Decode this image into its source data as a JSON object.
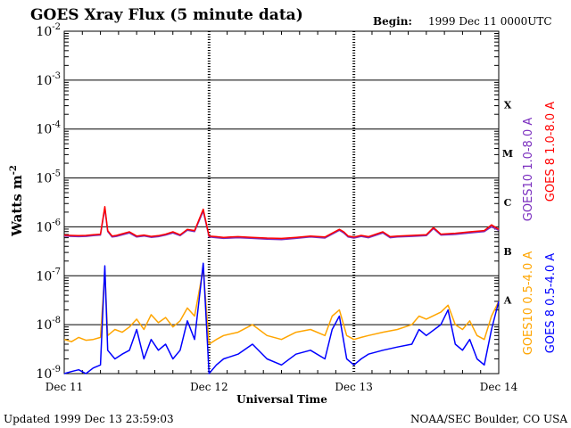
{
  "chart_data": {
    "type": "line",
    "title": "GOES Xray Flux (5 minute data)",
    "begin_label": "Begin:",
    "begin_value": "1999 Dec 11 0000UTC",
    "ylabel": "Watts m",
    "ylabel_sup": "-2",
    "xlabel": "Universal Time",
    "footer_left": "Updated 1999 Dec 13 23:59:03",
    "footer_right": "NOAA/SEC Boulder, CO USA",
    "y_scale": "log",
    "ylim": [
      1e-09,
      0.01
    ],
    "y_ticks": [
      {
        "base": "10",
        "exp": "-2"
      },
      {
        "base": "10",
        "exp": "-3"
      },
      {
        "base": "10",
        "exp": "-4"
      },
      {
        "base": "10",
        "exp": "-5"
      },
      {
        "base": "10",
        "exp": "-6"
      },
      {
        "base": "10",
        "exp": "-7"
      },
      {
        "base": "10",
        "exp": "-8"
      },
      {
        "base": "10",
        "exp": "-9"
      }
    ],
    "x_ticks": [
      "Dec 11",
      "Dec 12",
      "Dec 13",
      "Dec 14"
    ],
    "xlim_days": [
      0,
      3
    ],
    "flare_classes": [
      "X",
      "M",
      "C",
      "B",
      "A"
    ],
    "grid": true,
    "legend_position": "right (rotated)",
    "series": [
      {
        "name": "GOES10 1.0-8.0 A",
        "color": "#7b2fbf",
        "t": [
          0,
          0.05,
          0.1,
          0.15,
          0.2,
          0.25,
          0.28,
          0.3,
          0.33,
          0.36,
          0.45,
          0.5,
          0.55,
          0.6,
          0.65,
          0.7,
          0.75,
          0.8,
          0.85,
          0.9,
          0.96,
          1.0,
          1.05,
          1.1,
          1.15,
          1.2,
          1.3,
          1.4,
          1.5,
          1.6,
          1.7,
          1.8,
          1.9,
          1.93,
          1.96,
          2.0,
          2.05,
          2.1,
          2.2,
          2.25,
          2.3,
          2.4,
          2.5,
          2.55,
          2.6,
          2.7,
          2.8,
          2.9,
          2.95,
          3.0
        ],
        "v": [
          6.5e-07,
          6.4e-07,
          6.3e-07,
          6.4e-07,
          6.6e-07,
          6.8e-07,
          2.4e-06,
          8e-07,
          6.2e-07,
          6.4e-07,
          7.5e-07,
          6.2e-07,
          6.5e-07,
          6.1e-07,
          6.3e-07,
          6.8e-07,
          7.5e-07,
          6.6e-07,
          8.5e-07,
          8e-07,
          2.1e-06,
          6.2e-07,
          6e-07,
          5.8e-07,
          5.9e-07,
          6e-07,
          5.8e-07,
          5.6e-07,
          5.5e-07,
          5.8e-07,
          6.2e-07,
          5.9e-07,
          8.5e-07,
          7.5e-07,
          6.2e-07,
          5.9e-07,
          6.4e-07,
          6e-07,
          7.5e-07,
          6e-07,
          6.2e-07,
          6.4e-07,
          6.6e-07,
          9.2e-07,
          6.8e-07,
          7e-07,
          7.5e-07,
          8e-07,
          1e-06,
          8.5e-07
        ]
      },
      {
        "name": "GOES 8 1.0-8.0 A",
        "color": "#ff0000",
        "t": [
          0,
          0.05,
          0.1,
          0.15,
          0.2,
          0.25,
          0.28,
          0.3,
          0.33,
          0.36,
          0.45,
          0.5,
          0.55,
          0.6,
          0.65,
          0.7,
          0.75,
          0.8,
          0.85,
          0.9,
          0.96,
          1.0,
          1.05,
          1.1,
          1.15,
          1.2,
          1.3,
          1.4,
          1.5,
          1.6,
          1.7,
          1.8,
          1.9,
          1.93,
          1.96,
          2.0,
          2.05,
          2.1,
          2.2,
          2.25,
          2.3,
          2.4,
          2.5,
          2.55,
          2.6,
          2.7,
          2.8,
          2.9,
          2.95,
          3.0
        ],
        "v": [
          6.8e-07,
          6.7e-07,
          6.6e-07,
          6.7e-07,
          6.9e-07,
          7.1e-07,
          2.6e-06,
          8.4e-07,
          6.5e-07,
          6.7e-07,
          7.9e-07,
          6.5e-07,
          6.8e-07,
          6.4e-07,
          6.6e-07,
          7.1e-07,
          7.9e-07,
          6.9e-07,
          8.9e-07,
          8.4e-07,
          2.3e-06,
          6.5e-07,
          6.3e-07,
          6.1e-07,
          6.2e-07,
          6.3e-07,
          6.1e-07,
          5.9e-07,
          5.8e-07,
          6.1e-07,
          6.5e-07,
          6.2e-07,
          8.9e-07,
          7.9e-07,
          6.5e-07,
          6.2e-07,
          6.7e-07,
          6.3e-07,
          7.9e-07,
          6.3e-07,
          6.5e-07,
          6.7e-07,
          6.9e-07,
          9.7e-07,
          7.1e-07,
          7.4e-07,
          7.9e-07,
          8.4e-07,
          1.1e-06,
          8.9e-07
        ]
      },
      {
        "name": "GOES10 0.5-4.0 A",
        "color": "#ffa500",
        "t": [
          0,
          0.05,
          0.1,
          0.15,
          0.2,
          0.25,
          0.28,
          0.3,
          0.35,
          0.4,
          0.45,
          0.5,
          0.55,
          0.6,
          0.65,
          0.7,
          0.75,
          0.8,
          0.85,
          0.9,
          0.96,
          1.0,
          1.05,
          1.1,
          1.2,
          1.3,
          1.4,
          1.5,
          1.6,
          1.7,
          1.8,
          1.85,
          1.9,
          1.95,
          2.0,
          2.05,
          2.1,
          2.2,
          2.3,
          2.4,
          2.45,
          2.5,
          2.6,
          2.65,
          2.7,
          2.75,
          2.8,
          2.85,
          2.9,
          2.95,
          3.0
        ],
        "v": [
          5e-09,
          4.5e-09,
          5.5e-09,
          4.8e-09,
          5e-09,
          5.5e-09,
          1.2e-07,
          6e-09,
          8e-09,
          7e-09,
          9e-09,
          1.3e-08,
          8e-09,
          1.6e-08,
          1.1e-08,
          1.4e-08,
          9e-09,
          1.2e-08,
          2.2e-08,
          1.5e-08,
          1.4e-07,
          4e-09,
          5e-09,
          6e-09,
          7e-09,
          1e-08,
          6e-09,
          5e-09,
          7e-09,
          8e-09,
          6e-09,
          1.5e-08,
          2e-08,
          6e-09,
          5e-09,
          5.5e-09,
          6e-09,
          7e-09,
          8e-09,
          1e-08,
          1.5e-08,
          1.3e-08,
          1.8e-08,
          2.5e-08,
          1e-08,
          8e-09,
          1.2e-08,
          6e-09,
          5e-09,
          1.5e-08,
          3e-08
        ]
      },
      {
        "name": "GOES 8 0.5-4.0 A",
        "color": "#0000ff",
        "t": [
          0,
          0.05,
          0.1,
          0.15,
          0.2,
          0.25,
          0.28,
          0.3,
          0.35,
          0.4,
          0.45,
          0.5,
          0.55,
          0.6,
          0.65,
          0.7,
          0.75,
          0.8,
          0.85,
          0.9,
          0.96,
          1.0,
          1.05,
          1.1,
          1.2,
          1.3,
          1.4,
          1.5,
          1.6,
          1.7,
          1.8,
          1.85,
          1.9,
          1.95,
          2.0,
          2.05,
          2.1,
          2.2,
          2.3,
          2.4,
          2.45,
          2.5,
          2.6,
          2.65,
          2.7,
          2.75,
          2.8,
          2.85,
          2.9,
          2.95,
          3.0
        ],
        "v": [
          1e-09,
          1.1e-09,
          1.2e-09,
          1e-09,
          1.3e-09,
          1.5e-09,
          1.6e-07,
          3e-09,
          2e-09,
          2.5e-09,
          3e-09,
          8e-09,
          2e-09,
          5e-09,
          3e-09,
          4e-09,
          2e-09,
          3e-09,
          1.2e-08,
          5e-09,
          1.8e-07,
          1e-09,
          1.5e-09,
          2e-09,
          2.5e-09,
          4e-09,
          2e-09,
          1.5e-09,
          2.5e-09,
          3e-09,
          2e-09,
          8e-09,
          1.5e-08,
          2e-09,
          1.5e-09,
          2e-09,
          2.5e-09,
          3e-09,
          3.5e-09,
          4e-09,
          8e-09,
          6e-09,
          1e-08,
          2e-08,
          4e-09,
          3e-09,
          5e-09,
          2e-09,
          1.5e-09,
          8e-09,
          3e-08
        ]
      }
    ]
  }
}
